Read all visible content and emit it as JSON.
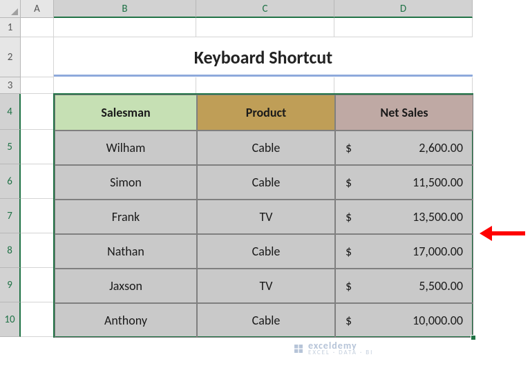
{
  "layout": {
    "col_widths": {
      "A": 48,
      "B": 206,
      "C": 200,
      "D": 200
    },
    "row_heights": {
      "1": 28,
      "2": 58,
      "3": 24,
      "4": 52,
      "5": 50,
      "6": 50,
      "7": 50,
      "8": 50,
      "9": 50,
      "10": 50
    },
    "selected_cols": [
      "B",
      "C",
      "D"
    ],
    "selected_rows": [
      "4",
      "5",
      "6",
      "7",
      "8",
      "9",
      "10"
    ]
  },
  "columns": {
    "A": "A",
    "B": "B",
    "C": "C",
    "D": "D"
  },
  "rows": [
    "1",
    "2",
    "3",
    "4",
    "5",
    "6",
    "7",
    "8",
    "9",
    "10"
  ],
  "title": {
    "text": "Keyboard Shortcut",
    "underline_color": "#8ea9db",
    "fontsize": 26
  },
  "table": {
    "selection_border_color": "#217346",
    "cell_border_color": "#7f7f7f",
    "data_bg": "#c9c9c9",
    "header_fontsize": 18,
    "data_fontsize": 18,
    "headers": [
      {
        "label": "Salesman",
        "bg": "#c6e0b4"
      },
      {
        "label": "Product",
        "bg": "#bf9e57"
      },
      {
        "label": "Net Sales",
        "bg": "#bfa9a4"
      }
    ],
    "columns": [
      "salesman",
      "product",
      "net_sales"
    ],
    "currency_symbol": "$",
    "rows": [
      {
        "salesman": "Wilham",
        "product": "Cable",
        "net_sales": "2,600.00"
      },
      {
        "salesman": "Simon",
        "product": "Cable",
        "net_sales": "11,500.00"
      },
      {
        "salesman": "Frank",
        "product": "TV",
        "net_sales": "13,500.00"
      },
      {
        "salesman": "Nathan",
        "product": "Cable",
        "net_sales": "17,000.00"
      },
      {
        "salesman": "Jaxson",
        "product": "TV",
        "net_sales": "5,500.00"
      },
      {
        "salesman": "Anthony",
        "product": "Cable",
        "net_sales": "10,000.00"
      }
    ]
  },
  "arrow": {
    "color": "#ff0000",
    "points_to_row": 7
  },
  "watermark": {
    "brand": "exceldemy",
    "tagline": "EXCEL · DATA · BI",
    "color": "#b6c4d8"
  }
}
